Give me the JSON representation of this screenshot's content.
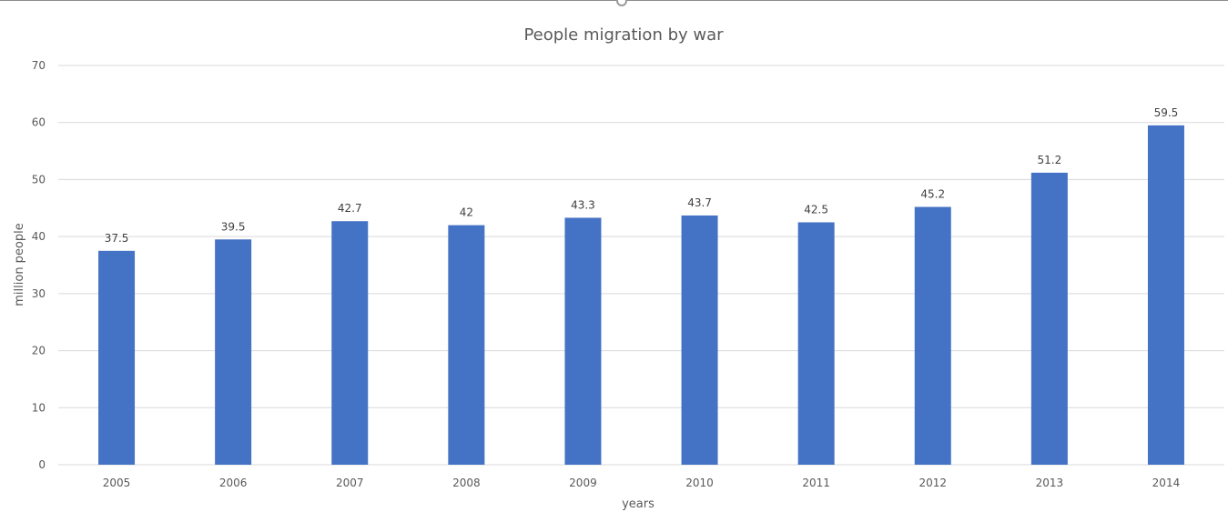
{
  "chart_data": {
    "type": "bar",
    "title": "People migration by war",
    "xlabel": "years",
    "ylabel": "million people",
    "categories": [
      "2005",
      "2006",
      "2007",
      "2008",
      "2009",
      "2010",
      "2011",
      "2012",
      "2013",
      "2014"
    ],
    "values": [
      37.5,
      39.5,
      42.7,
      42,
      43.3,
      43.7,
      42.5,
      45.2,
      51.2,
      59.5
    ],
    "ylim": [
      0,
      70
    ],
    "yticks": [
      0,
      10,
      20,
      30,
      40,
      50,
      60,
      70
    ],
    "grid": true,
    "data_labels": true,
    "legend": "none",
    "bar_color": "#4472c4"
  }
}
